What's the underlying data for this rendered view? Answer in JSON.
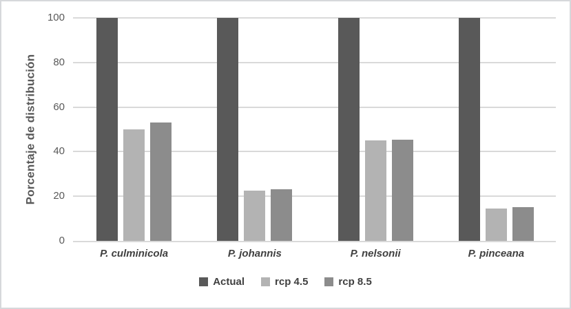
{
  "chart_data": {
    "type": "bar",
    "title": "",
    "xlabel": "",
    "ylabel": "Porcentaje de distribución",
    "categories": [
      "P. culminicola",
      "P. johannis",
      "P. nelsonii",
      "P. pinceana"
    ],
    "series": [
      {
        "name": "Actual",
        "color": "#595959",
        "values": [
          100,
          100,
          100,
          100
        ]
      },
      {
        "name": "rcp 4.5",
        "color": "#b3b3b3",
        "values": [
          50,
          22.5,
          45,
          14.5
        ]
      },
      {
        "name": "rcp 8.5",
        "color": "#8c8c8c",
        "values": [
          53,
          23,
          45.5,
          15
        ]
      }
    ],
    "ylim": [
      0,
      100
    ],
    "yticks": [
      0,
      20,
      40,
      60,
      80,
      100
    ],
    "grid": true,
    "legend_position": "bottom",
    "colors": {
      "gridline": "#d9d9d9",
      "axis_line": "#d9d9d9",
      "tick_text": "#595959",
      "category_text": "#404040",
      "legend_text": "#404040",
      "frame_border": "#d6d8db",
      "background": "#ffffff"
    }
  }
}
